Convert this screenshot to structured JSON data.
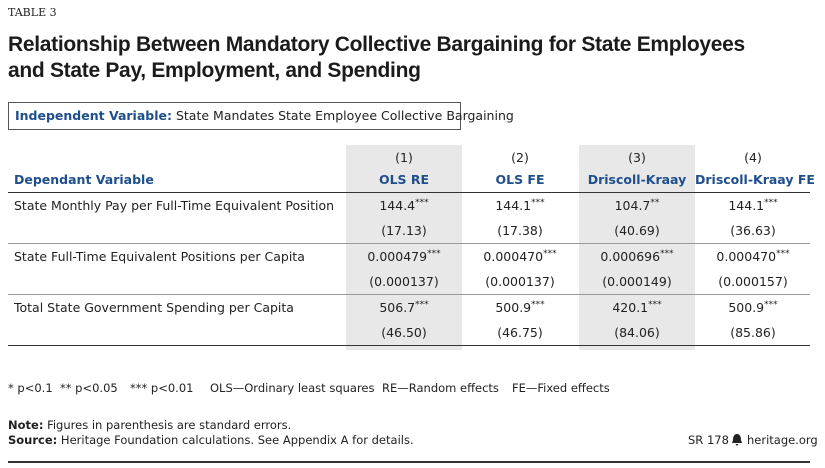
{
  "header": {
    "label": "TABLE 3",
    "title_lines": [
      "Relationship Between Mandatory Collective Bargaining for State Employees",
      "and State Pay, Employment, and Spending"
    ]
  },
  "independent_variable": {
    "label": "Independent Variable:",
    "text": "State Mandates State Employee Collective Bargaining"
  },
  "table": {
    "row_header": "Dependant Variable",
    "columns": [
      {
        "number": "(1)",
        "name": "OLS RE"
      },
      {
        "number": "(2)",
        "name": "OLS FE"
      },
      {
        "number": "(3)",
        "name": "Driscoll-Kraay"
      },
      {
        "number": "(4)",
        "name": "Driscoll-Kraay FE"
      }
    ],
    "rows": [
      {
        "label": "State Monthly Pay per Full-Time Equivalent Position",
        "cells": [
          {
            "value": "144.4",
            "stars": "***",
            "se": "(17.13)"
          },
          {
            "value": "144.1",
            "stars": "***",
            "se": "(17.38)"
          },
          {
            "value": "104.7",
            "stars": "**",
            "se": "(40.69)"
          },
          {
            "value": "144.1",
            "stars": "***",
            "se": "(36.63)"
          }
        ]
      },
      {
        "label": "State Full-Time Equivalent Positions per Capita",
        "cells": [
          {
            "value": "0.000479",
            "stars": "***",
            "se": "(0.000137)"
          },
          {
            "value": "0.000470",
            "stars": "***",
            "se": "(0.000137)"
          },
          {
            "value": "0.000696",
            "stars": "***",
            "se": "(0.000149)"
          },
          {
            "value": "0.000470",
            "stars": "***",
            "se": "(0.000157)"
          }
        ]
      },
      {
        "label": "Total State Government Spending per Capita",
        "cells": [
          {
            "value": "506.7",
            "stars": "***",
            "se": "(46.50)"
          },
          {
            "value": "500.9",
            "stars": "***",
            "se": "(46.75)"
          },
          {
            "value": "420.1",
            "stars": "***",
            "se": "(84.06)"
          },
          {
            "value": "500.9",
            "stars": "***",
            "se": "(85.86)"
          }
        ]
      }
    ]
  },
  "legend": [
    "* p<0.1",
    "** p<0.05",
    "*** p<0.01",
    "OLS—Ordinary least squares",
    "RE—Random effects",
    "FE—Fixed effects"
  ],
  "footer": {
    "note_label": "Note:",
    "note": "Figures in parenthesis are standard errors.",
    "source_label": "Source:",
    "source": "Heritage Foundation calculations. See Appendix A for details.",
    "report": "SR 178",
    "site": "heritage.org"
  }
}
